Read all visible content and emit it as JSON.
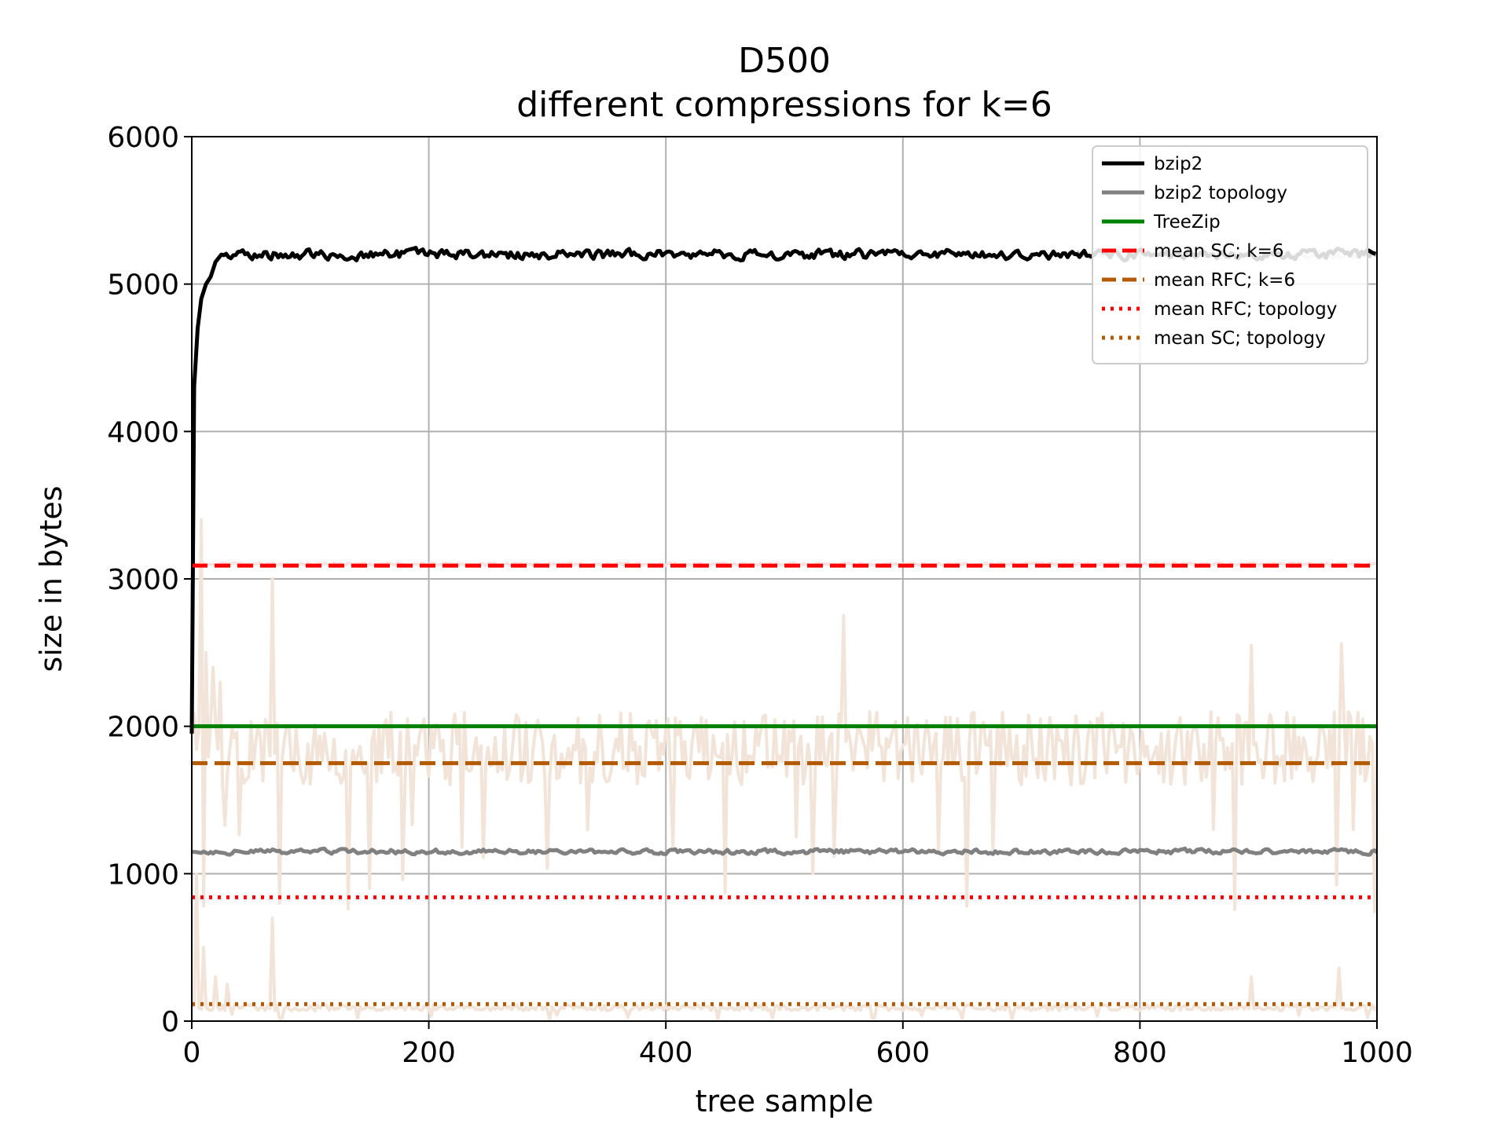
{
  "chart_data": {
    "type": "line",
    "title": "D500",
    "subtitle": "different compressions for k=6",
    "xlabel": "tree sample",
    "ylabel": "size in bytes",
    "xlim": [
      0,
      1000
    ],
    "ylim": [
      0,
      6000
    ],
    "xticks": [
      "0",
      "200",
      "400",
      "600",
      "800",
      "1000"
    ],
    "yticks": [
      "0",
      "1000",
      "2000",
      "3000",
      "4000",
      "5000",
      "6000"
    ],
    "grid": true,
    "legend_position": "top-right",
    "series": [
      {
        "name": "bzip2",
        "color": "#000000",
        "style": "solid",
        "start": 1950,
        "ramp": [
          [
            0,
            1950
          ],
          [
            2,
            4300
          ],
          [
            5,
            4700
          ],
          [
            8,
            4900
          ],
          [
            12,
            5000
          ],
          [
            16,
            5050
          ],
          [
            20,
            5150
          ],
          [
            25,
            5200
          ]
        ],
        "plateau": 5200,
        "noise": 28
      },
      {
        "name": "bzip2 topology",
        "color": "#808080",
        "style": "solid",
        "plateau": 1150,
        "noise": 14
      },
      {
        "name": "TreeZip",
        "color": "#008000",
        "style": "solid",
        "value": 2000
      },
      {
        "name": "mean SC; k=6",
        "color": "#ff0000",
        "style": "dashed",
        "value": 3090
      },
      {
        "name": "mean RFC; k=6",
        "color": "#b35900",
        "style": "dashed",
        "value": 1750
      },
      {
        "name": "mean RFC; topology",
        "color": "#ff0000",
        "style": "dotted",
        "value": 840
      },
      {
        "name": "mean SC; topology",
        "color": "#b35900",
        "style": "dotted",
        "value": 115
      }
    ],
    "background_series": [
      {
        "role": "raw SC; k=6",
        "color": "#d3d3d3",
        "plateau": 5200,
        "noise": 25,
        "x_from": 740
      },
      {
        "role": "raw SC; k=6 low band",
        "color": "#ffe0e0",
        "plateau": 3100,
        "noise": 8
      },
      {
        "role": "raw RFC; k=6",
        "color": "#f2e4d8",
        "base": 1850,
        "noise": 250,
        "spikes": [
          [
            8,
            3400
          ],
          [
            12,
            2500
          ],
          [
            18,
            2400
          ],
          [
            25,
            2300
          ],
          [
            68,
            3000
          ],
          [
            75,
            800
          ],
          [
            150,
            900
          ],
          [
            550,
            2750
          ],
          [
            655,
            780
          ],
          [
            895,
            2550
          ],
          [
            970,
            2560
          ],
          [
            980,
            1300
          ]
        ]
      },
      {
        "role": "raw SC; topology",
        "color": "#f2e4d8",
        "base": 90,
        "noise": 20,
        "spikes": [
          [
            5,
            1000
          ],
          [
            10,
            500
          ],
          [
            20,
            300
          ],
          [
            30,
            250
          ],
          [
            68,
            700
          ],
          [
            895,
            300
          ],
          [
            968,
            360
          ]
        ]
      }
    ]
  }
}
